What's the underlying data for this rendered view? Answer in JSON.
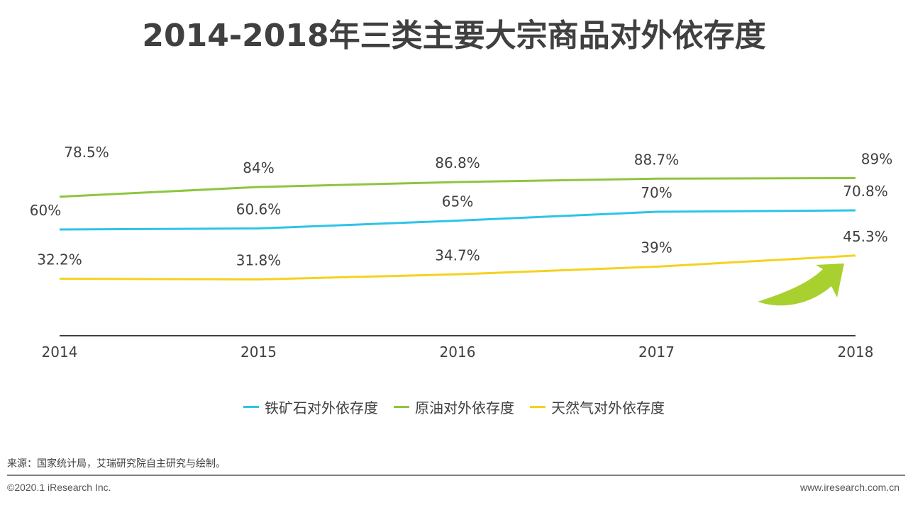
{
  "title": "2014-2018年三类主要大宗商品对外依存度",
  "chart_data": {
    "type": "line",
    "categories": [
      "2014",
      "2015",
      "2016",
      "2017",
      "2018"
    ],
    "series": [
      {
        "name": "铁矿石对外依存度",
        "values": [
          60,
          60.6,
          65,
          70,
          70.8
        ],
        "labels": [
          "60%",
          "60.6%",
          "65%",
          "70%",
          "70.8%"
        ],
        "color": "#2EC4E6"
      },
      {
        "name": "原油对外依存度",
        "values": [
          78.5,
          84,
          86.8,
          88.7,
          89
        ],
        "labels": [
          "78.5%",
          "84%",
          "86.8%",
          "88.7%",
          "89%"
        ],
        "color": "#8CC63F"
      },
      {
        "name": "天然气对外依存度",
        "values": [
          32.2,
          31.8,
          34.7,
          39,
          45.3
        ],
        "labels": [
          "32.2%",
          "31.8%",
          "34.7%",
          "39%",
          "45.3%"
        ],
        "color": "#F5D21E"
      }
    ],
    "ylim": [
      0,
      100
    ],
    "grid": false,
    "legend_position": "bottom",
    "annotation_arrow_color": "#A8D12F"
  },
  "source": "来源：国家统计局，艾瑞研究院自主研究与绘制。",
  "copyright": "©2020.1 iResearch Inc.",
  "website": "www.iresearch.com.cn"
}
